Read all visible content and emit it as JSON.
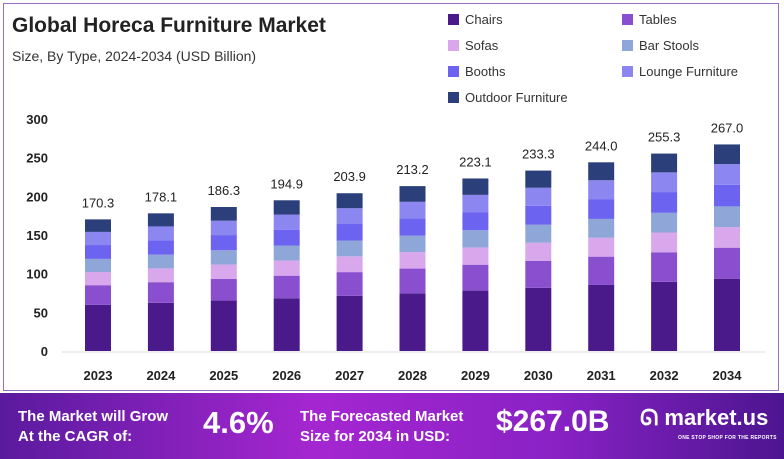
{
  "chart_data": {
    "type": "bar",
    "stacked": true,
    "title": "Global Horeca Furniture Market",
    "subtitle": "Size, By Type, 2024-2034 (USD Billion)",
    "categories": [
      "2023",
      "2024",
      "2025",
      "2026",
      "2027",
      "2028",
      "2029",
      "2030",
      "2031",
      "2032",
      "2034"
    ],
    "totals": [
      "170.3",
      "178.1",
      "186.3",
      "194.9",
      "203.9",
      "213.2",
      "223.1",
      "233.3",
      "244.0",
      "255.3",
      "267.0"
    ],
    "ylim": [
      0,
      300
    ],
    "yticks": [
      "0",
      "50",
      "100",
      "150",
      "200",
      "250",
      "300"
    ],
    "legend_position": "top-right",
    "series": [
      {
        "name": "Chairs",
        "color": "#4a1a8a",
        "values": [
          59.6,
          62.3,
          65.2,
          68.2,
          71.4,
          74.6,
          78.1,
          81.7,
          85.4,
          89.4,
          93.5
        ]
      },
      {
        "name": "Tables",
        "color": "#8a4fcf",
        "values": [
          25.5,
          26.7,
          27.9,
          29.2,
          30.6,
          32.0,
          33.5,
          35.0,
          36.6,
          38.3,
          40.1
        ]
      },
      {
        "name": "Sofas",
        "color": "#d9a8ec",
        "values": [
          17.0,
          17.8,
          18.6,
          19.5,
          20.4,
          21.3,
          22.3,
          23.3,
          24.4,
          25.5,
          26.7
        ]
      },
      {
        "name": "Bar Stools",
        "color": "#8fa6d8",
        "values": [
          17.0,
          17.8,
          18.6,
          19.5,
          20.4,
          21.3,
          22.3,
          23.3,
          24.4,
          25.5,
          26.7
        ]
      },
      {
        "name": "Booths",
        "color": "#6c63f0",
        "values": [
          17.9,
          18.7,
          19.6,
          20.5,
          21.4,
          22.4,
          23.4,
          24.5,
          25.6,
          26.8,
          28.0
        ]
      },
      {
        "name": "Lounge Furniture",
        "color": "#8c86f0",
        "values": [
          17.0,
          17.8,
          18.6,
          19.5,
          20.4,
          21.3,
          22.3,
          23.3,
          24.4,
          25.5,
          26.7
        ]
      },
      {
        "name": "Outdoor Furniture",
        "color": "#2b3f7a",
        "values": [
          16.2,
          16.9,
          17.7,
          18.5,
          19.4,
          20.3,
          21.2,
          22.2,
          23.2,
          24.3,
          25.4
        ]
      }
    ]
  },
  "banner": {
    "grow_line1": "The Market will Grow",
    "grow_line2": "At the CAGR of:",
    "cagr": "4.6%",
    "forecast_line1": "The Forecasted Market",
    "forecast_line2": "Size for 2034 in USD:",
    "forecast_value": "$267.0B",
    "logo": "market.us",
    "tagline": "ONE STOP SHOP FOR THE REPORTS"
  }
}
